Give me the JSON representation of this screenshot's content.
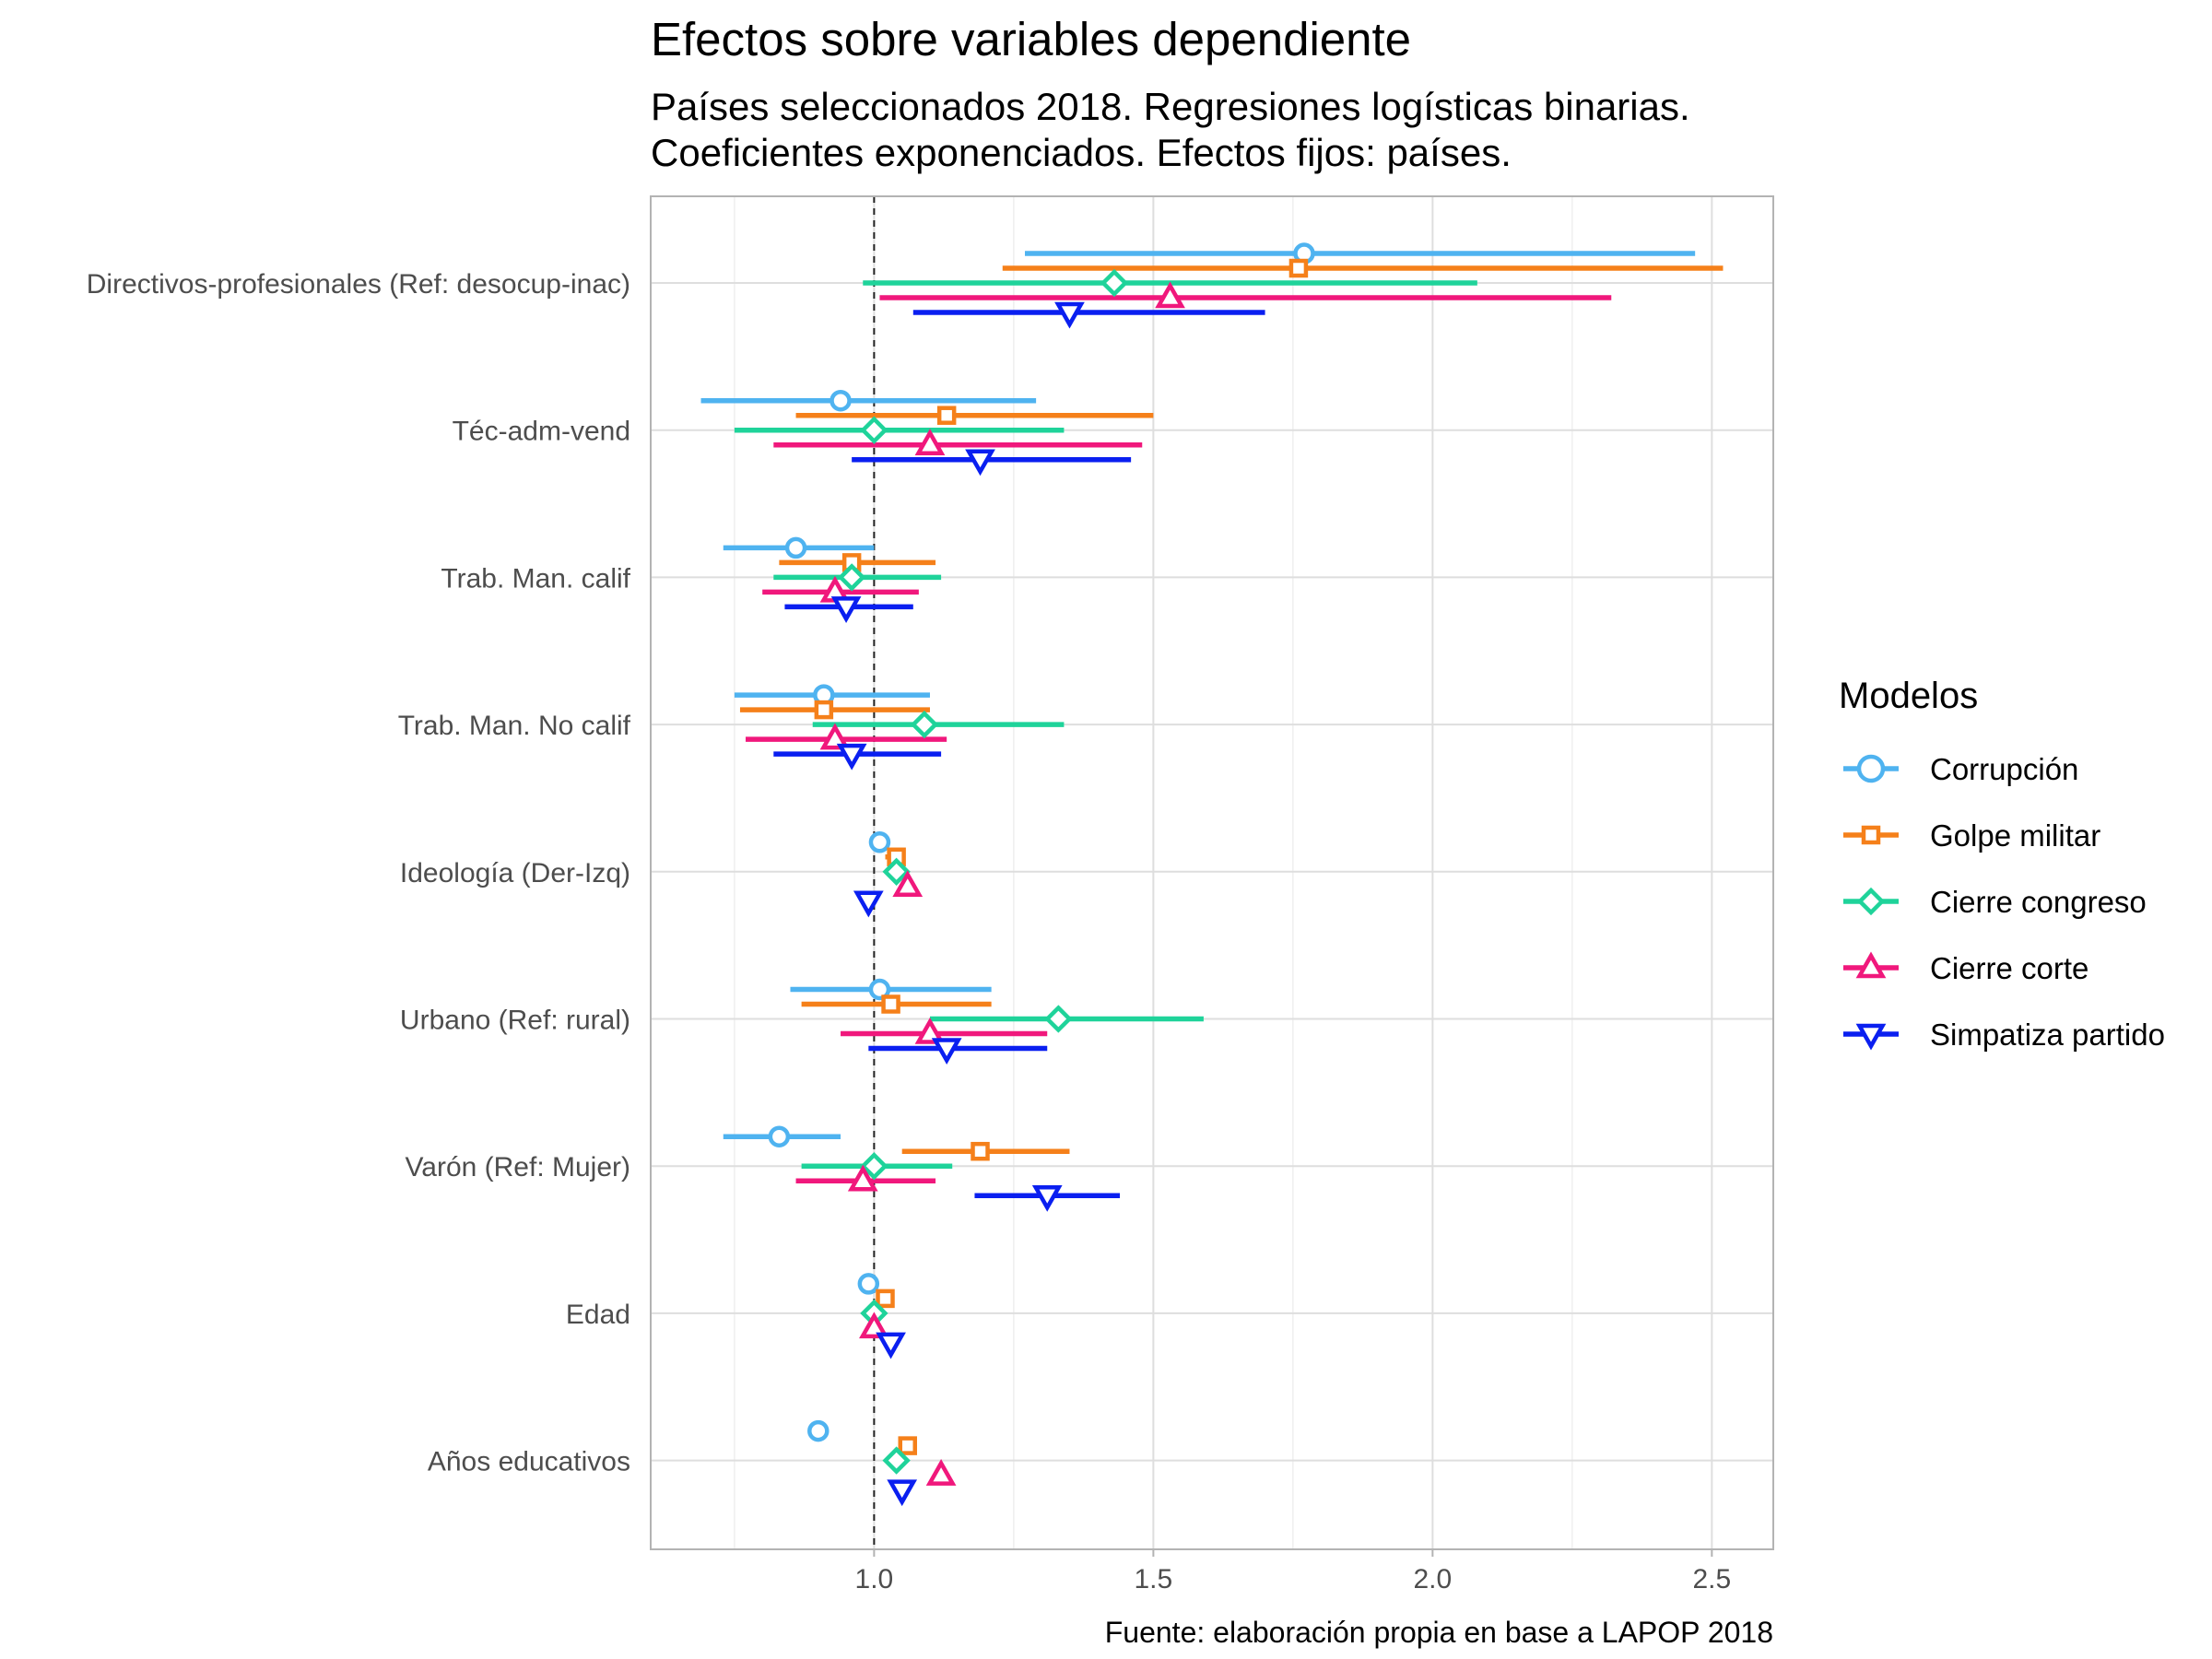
{
  "chart_data": {
    "type": "scatter",
    "title": "Efectos sobre variables dependiente",
    "subtitle_lines": [
      "Países seleccionados 2018. Regresiones logísticas binarias.",
      "Coeficientes exponenciados. Efectos fijos: países."
    ],
    "caption": "Fuente: elaboración propia en base a LAPOP 2018",
    "xlabel": "",
    "ylabel": "",
    "xlim": [
      0.6,
      2.61
    ],
    "x_ticks": [
      1.0,
      1.5,
      2.0,
      2.5
    ],
    "x_tick_labels": [
      "1.0",
      "1.5",
      "2.0",
      "2.5"
    ],
    "reference_line": 1.0,
    "grid": true,
    "legend_position": "right",
    "legend_title": "Modelos",
    "categories": [
      "Directivos-profesionales (Ref: desocup-inac)",
      "Téc-adm-vend",
      "Trab. Man. calif",
      "Trab. Man. No calif",
      "Ideología (Der-Izq)",
      "Urbano (Ref: rural)",
      "Varón (Ref: Mujer)",
      "Edad",
      "Años educativos"
    ],
    "series": [
      {
        "name": "Corrupción",
        "color": "#4fb3f0",
        "shape": "circle",
        "estimates": [
          1.77,
          0.94,
          0.86,
          0.91,
          1.01,
          1.01,
          0.83,
          0.99,
          0.9
        ],
        "lower": [
          1.27,
          0.69,
          0.73,
          0.75,
          1.0,
          0.85,
          0.73,
          0.98,
          0.89
        ],
        "upper": [
          2.47,
          1.29,
          1.0,
          1.1,
          1.02,
          1.21,
          0.94,
          1.0,
          0.91
        ]
      },
      {
        "name": "Golpe militar",
        "color": "#f5801a",
        "shape": "square",
        "estimates": [
          1.76,
          1.13,
          0.96,
          0.91,
          1.04,
          1.03,
          1.19,
          1.02,
          1.06
        ],
        "lower": [
          1.23,
          0.86,
          0.83,
          0.76,
          1.02,
          0.87,
          1.05,
          1.01,
          1.05
        ],
        "upper": [
          2.52,
          1.5,
          1.11,
          1.1,
          1.05,
          1.21,
          1.35,
          1.03,
          1.07
        ]
      },
      {
        "name": "Cierre congreso",
        "color": "#1fd39a",
        "shape": "diamond",
        "estimates": [
          1.43,
          1.0,
          0.96,
          1.09,
          1.04,
          1.33,
          1.0,
          1.0,
          1.04
        ],
        "lower": [
          0.98,
          0.75,
          0.82,
          0.89,
          1.02,
          1.1,
          0.87,
          0.99,
          1.03
        ],
        "upper": [
          2.08,
          1.34,
          1.12,
          1.34,
          1.05,
          1.59,
          1.14,
          1.01,
          1.05
        ]
      },
      {
        "name": "Cierre corte",
        "color": "#f0187c",
        "shape": "triangle-up",
        "estimates": [
          1.53,
          1.1,
          0.93,
          0.93,
          1.06,
          1.1,
          0.98,
          1.0,
          1.12
        ],
        "lower": [
          1.01,
          0.82,
          0.8,
          0.77,
          1.05,
          0.94,
          0.86,
          0.99,
          1.11
        ],
        "upper": [
          2.32,
          1.48,
          1.08,
          1.13,
          1.07,
          1.31,
          1.11,
          1.01,
          1.13
        ]
      },
      {
        "name": "Simpatiza partido",
        "color": "#0a1ff0",
        "shape": "triangle-down",
        "estimates": [
          1.35,
          1.19,
          0.95,
          0.96,
          0.99,
          1.13,
          1.31,
          1.03,
          1.05
        ],
        "lower": [
          1.07,
          0.96,
          0.84,
          0.82,
          0.98,
          0.99,
          1.18,
          1.02,
          1.04
        ],
        "upper": [
          1.7,
          1.46,
          1.07,
          1.12,
          1.0,
          1.31,
          1.44,
          1.04,
          1.06
        ]
      }
    ]
  }
}
